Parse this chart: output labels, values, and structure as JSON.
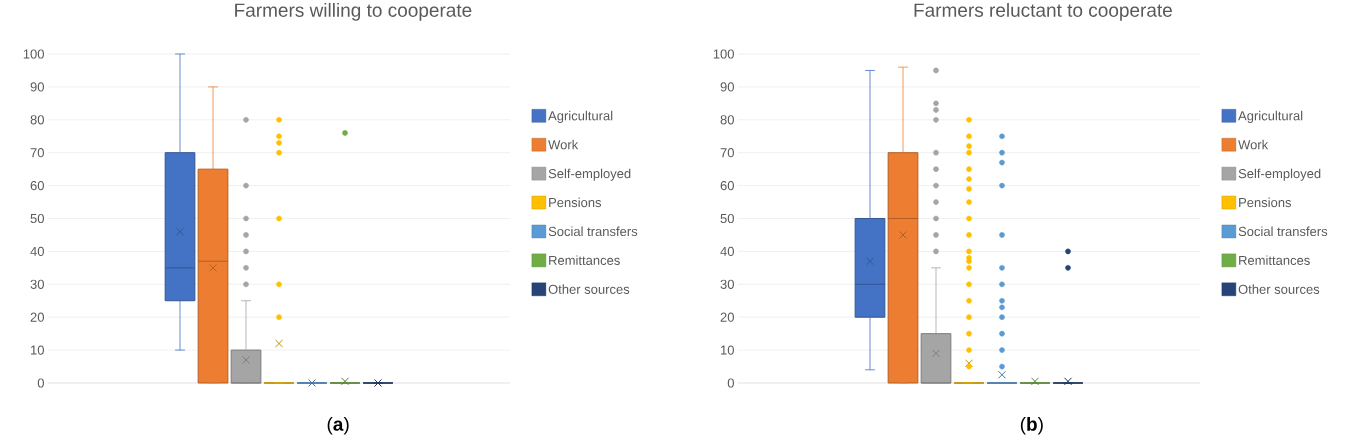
{
  "chart_data": [
    {
      "type": "box",
      "title": "Farmers willing to cooperate",
      "annotations": [
        "(**a**)"
      ],
      "categories": [
        null
      ],
      "ylim": [
        0,
        100
      ],
      "yticks": [
        0,
        10,
        20,
        30,
        40,
        50,
        60,
        70,
        80,
        90,
        100
      ],
      "grid": "y",
      "legend": "right",
      "series": [
        {
          "name": "Agricultural",
          "color": "#4472c4",
          "boxes": [
            {
              "low": 10,
              "q1": 25,
              "median": 35,
              "q3": 70,
              "high": 100,
              "mean": 46
            }
          ]
        },
        {
          "name": "Work",
          "color": "#ed7d31",
          "boxes": [
            {
              "low": 0,
              "q1": 0,
              "median": 37,
              "q3": 65,
              "high": 90,
              "mean": 35
            }
          ]
        },
        {
          "name": "Self-employed",
          "color": "#a5a5a5",
          "boxes": [
            {
              "low": 0,
              "q1": 0,
              "median": 0,
              "q3": 10,
              "high": 25,
              "mean": 7,
              "outliers": [
                30,
                35,
                40,
                45,
                50,
                60,
                80
              ]
            }
          ]
        },
        {
          "name": "Pensions",
          "color": "#ffc000",
          "boxes": [
            {
              "low": 0,
              "q1": 0,
              "median": 0,
              "q3": 0,
              "high": 0,
              "mean": 12,
              "outliers": [
                20,
                30,
                50,
                70,
                73,
                75,
                80
              ]
            }
          ]
        },
        {
          "name": "Social transfers",
          "color": "#5b9bd5",
          "boxes": [
            {
              "low": 0,
              "q1": 0,
              "median": 0,
              "q3": 0,
              "high": 0,
              "mean": 0
            }
          ]
        },
        {
          "name": "Remittances",
          "color": "#70ad47",
          "boxes": [
            {
              "low": 0,
              "q1": 0,
              "median": 0,
              "q3": 0,
              "high": 0,
              "mean": 0.5,
              "outliers": [
                76
              ]
            }
          ]
        },
        {
          "name": "Other sources",
          "color": "#264478",
          "boxes": [
            {
              "low": 0,
              "q1": 0,
              "median": 0,
              "q3": 0,
              "high": 0,
              "mean": 0
            }
          ]
        }
      ]
    },
    {
      "type": "box",
      "title": "Farmers reluctant to cooperate",
      "annotations": [
        "(**b**)"
      ],
      "categories": [
        null
      ],
      "ylim": [
        0,
        100
      ],
      "yticks": [
        0,
        10,
        20,
        30,
        40,
        50,
        60,
        70,
        80,
        90,
        100
      ],
      "grid": "y",
      "legend": "right",
      "series": [
        {
          "name": "Agricultural",
          "color": "#4472c4",
          "boxes": [
            {
              "low": 4,
              "q1": 20,
              "median": 30,
              "q3": 50,
              "high": 95,
              "mean": 37
            }
          ]
        },
        {
          "name": "Work",
          "color": "#ed7d31",
          "boxes": [
            {
              "low": 0,
              "q1": 0,
              "median": 50,
              "q3": 70,
              "high": 96,
              "mean": 45
            }
          ]
        },
        {
          "name": "Self-employed",
          "color": "#a5a5a5",
          "boxes": [
            {
              "low": 0,
              "q1": 0,
              "median": 0,
              "q3": 15,
              "high": 35,
              "mean": 9,
              "outliers": [
                40,
                45,
                50,
                55,
                60,
                65,
                70,
                80,
                83,
                85,
                95
              ]
            }
          ]
        },
        {
          "name": "Pensions",
          "color": "#ffc000",
          "boxes": [
            {
              "low": 0,
              "q1": 0,
              "median": 0,
              "q3": 0,
              "high": 0,
              "mean": 6,
              "outliers": [
                5,
                10,
                15,
                20,
                25,
                30,
                35,
                37,
                38,
                40,
                45,
                50,
                55,
                59,
                62,
                65,
                70,
                72,
                75,
                80
              ]
            }
          ]
        },
        {
          "name": "Social transfers",
          "color": "#5b9bd5",
          "boxes": [
            {
              "low": 0,
              "q1": 0,
              "median": 0,
              "q3": 0,
              "high": 0,
              "mean": 2.5,
              "outliers": [
                5,
                10,
                15,
                20,
                23,
                25,
                30,
                35,
                45,
                60,
                67,
                70,
                75
              ]
            }
          ]
        },
        {
          "name": "Remittances",
          "color": "#70ad47",
          "boxes": [
            {
              "low": 0,
              "q1": 0,
              "median": 0,
              "q3": 0,
              "high": 0,
              "mean": 0.5
            }
          ]
        },
        {
          "name": "Other sources",
          "color": "#264478",
          "boxes": [
            {
              "low": 0,
              "q1": 0,
              "median": 0,
              "q3": 0,
              "high": 0,
              "mean": 0.5,
              "outliers": [
                35,
                40
              ]
            }
          ]
        }
      ]
    }
  ]
}
